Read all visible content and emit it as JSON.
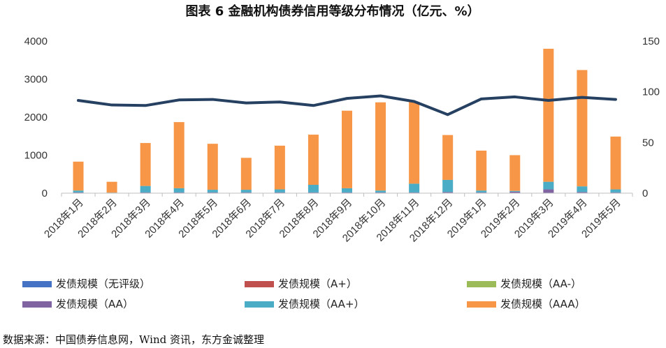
{
  "title": "图表 6   金融机构债券信用等级分布情况（亿元、%）",
  "source": "数据来源：中国债券信息网，Wind 资讯，东方金诚整理",
  "chart_data": {
    "type": "bar",
    "stacked": true,
    "categories": [
      "2018年1月",
      "2018年2月",
      "2018年3月",
      "2018年4月",
      "2018年5月",
      "2018年6月",
      "2018年7月",
      "2018年8月",
      "2018年9月",
      "2018年10月",
      "2018年11月",
      "2018年12月",
      "2019年1月",
      "2019年2月",
      "2019年3月",
      "2019年4月",
      "2019年5月"
    ],
    "y_left": {
      "min": 0,
      "max": 4000,
      "ticks": [
        0,
        1000,
        2000,
        3000,
        4000
      ]
    },
    "y_right": {
      "min": 0,
      "max": 150,
      "ticks": [
        0,
        50,
        100,
        150
      ]
    },
    "series": [
      {
        "name": "发债规模（无评级）",
        "color": "#4472c4",
        "values": [
          10,
          5,
          10,
          10,
          10,
          10,
          10,
          10,
          10,
          10,
          10,
          10,
          10,
          10,
          10,
          10,
          10
        ]
      },
      {
        "name": "发债规模（A+）",
        "color": "#c0504d",
        "values": [
          0,
          0,
          0,
          0,
          0,
          0,
          0,
          0,
          0,
          0,
          0,
          0,
          0,
          0,
          0,
          0,
          0
        ]
      },
      {
        "name": "发债规模（AA-）",
        "color": "#9bbb59",
        "values": [
          0,
          0,
          0,
          0,
          0,
          0,
          0,
          0,
          0,
          0,
          0,
          0,
          0,
          0,
          0,
          0,
          0
        ]
      },
      {
        "name": "发债规模（AA）",
        "color": "#8064a2",
        "values": [
          10,
          0,
          10,
          10,
          10,
          10,
          10,
          10,
          10,
          10,
          10,
          20,
          10,
          30,
          90,
          20,
          10
        ]
      },
      {
        "name": "发债规模（AA+）",
        "color": "#4bacc6",
        "values": [
          50,
          10,
          170,
          110,
          70,
          70,
          80,
          200,
          110,
          50,
          230,
          320,
          50,
          20,
          200,
          150,
          80
        ]
      },
      {
        "name": "发债规模（AAA）",
        "color": "#f79646",
        "values": [
          760,
          285,
          1130,
          1740,
          1210,
          840,
          1150,
          1320,
          2040,
          2320,
          2150,
          1180,
          1050,
          940,
          3500,
          3060,
          1390
        ]
      }
    ],
    "line": {
      "axis": "right",
      "color": "#254061",
      "values": [
        91.5,
        87,
        86.5,
        92,
        92.5,
        89,
        90,
        86.5,
        93.5,
        96,
        90.5,
        77.5,
        93,
        95,
        91.5,
        94.5,
        92.5
      ]
    }
  }
}
